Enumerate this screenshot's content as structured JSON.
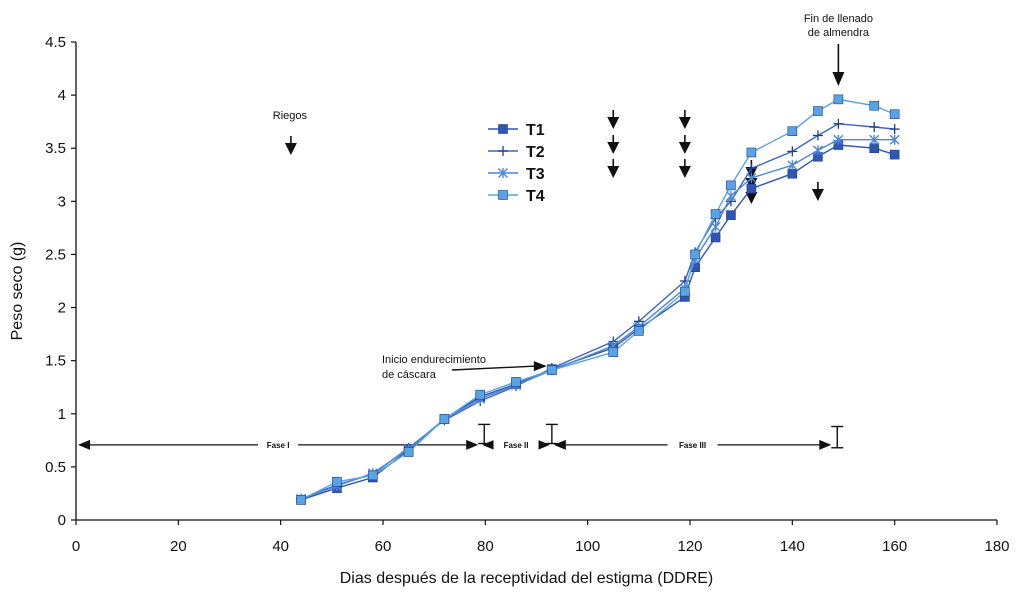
{
  "chart_data": {
    "type": "line",
    "title": "",
    "xlabel": "Dias después de la receptividad del estigma (DDRE)",
    "ylabel": "Peso seco (g)",
    "xlim": [
      0,
      180
    ],
    "ylim": [
      0,
      4.5
    ],
    "x_ticks": [
      "0",
      "20",
      "40",
      "60",
      "80",
      "100",
      "120",
      "140",
      "160",
      "180"
    ],
    "y_ticks": [
      "0",
      "0.5",
      "1",
      "1.5",
      "2",
      "2.5",
      "3",
      "3.5",
      "4",
      "4.5"
    ],
    "grid": false,
    "legend_position": "top-center",
    "x": [
      44,
      51,
      58,
      65,
      72,
      79,
      86,
      93,
      105,
      110,
      119,
      121,
      125,
      128,
      132,
      140,
      145,
      149,
      156,
      160
    ],
    "series": [
      {
        "name": "T1",
        "marker": "filled-square",
        "color": "#2f56b0",
        "values": [
          0.19,
          0.3,
          0.4,
          0.66,
          0.95,
          1.16,
          1.28,
          1.42,
          1.62,
          1.8,
          2.1,
          2.38,
          2.66,
          2.87,
          3.12,
          3.26,
          3.42,
          3.53,
          3.5,
          3.44
        ]
      },
      {
        "name": "T2",
        "marker": "plus",
        "color": "#3a67c4",
        "values": [
          0.2,
          0.33,
          0.43,
          0.68,
          0.94,
          1.12,
          1.26,
          1.43,
          1.68,
          1.87,
          2.25,
          2.52,
          2.84,
          3.0,
          3.31,
          3.47,
          3.62,
          3.73,
          3.7,
          3.68
        ]
      },
      {
        "name": "T3",
        "marker": "asterisk",
        "color": "#4f86d6",
        "values": [
          0.2,
          0.32,
          0.44,
          0.67,
          0.95,
          1.14,
          1.27,
          1.41,
          1.64,
          1.82,
          2.18,
          2.46,
          2.76,
          3.05,
          3.22,
          3.34,
          3.48,
          3.58,
          3.58,
          3.58
        ]
      },
      {
        "name": "T4",
        "marker": "filled-square",
        "color": "#5aa2e6",
        "values": [
          0.19,
          0.36,
          0.42,
          0.64,
          0.95,
          1.18,
          1.3,
          1.41,
          1.58,
          1.78,
          2.15,
          2.5,
          2.88,
          3.15,
          3.46,
          3.66,
          3.85,
          3.96,
          3.9,
          3.82
        ]
      }
    ],
    "annotations": {
      "riegos_label": "Riegos",
      "riegos_arrows": [
        {
          "x": 42,
          "stack": 1
        },
        {
          "x": 105,
          "stack": 3
        },
        {
          "x": 119,
          "stack": 3
        },
        {
          "x": 132,
          "stack": 3
        },
        {
          "x": 145,
          "stack": 1
        }
      ],
      "fin_llenado": {
        "line1": "Fin de llenado",
        "line2": "de almendra",
        "x": 149
      },
      "inicio_endurecimiento": {
        "line1": "Inicio endurecimiento",
        "line2": "de cáscara",
        "x": 93,
        "y": 1.43
      },
      "phase_y": 0.82,
      "phases": [
        {
          "label": "Fase I",
          "from": 0,
          "to": 79
        },
        {
          "label": "Fase II",
          "from": 79,
          "to": 93
        },
        {
          "label": "Fase III",
          "from": 93,
          "to": 148
        }
      ],
      "error_bars": [
        {
          "x": 79,
          "low": 0.72,
          "high": 0.9
        },
        {
          "x": 93,
          "low": 0.72,
          "high": 0.9
        },
        {
          "x": 148,
          "low": 0.68,
          "high": 0.88
        }
      ]
    }
  }
}
